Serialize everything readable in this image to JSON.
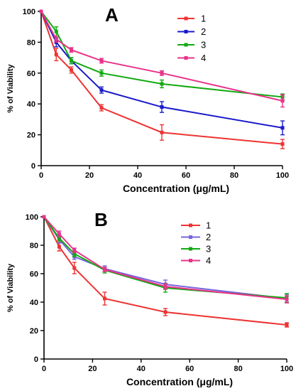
{
  "chart_data": [
    {
      "type": "line",
      "panel_label": "A",
      "xlabel": "Concentration (μg/mL)",
      "ylabel": "% of Viability",
      "xlim": [
        0,
        100
      ],
      "ylim": [
        0,
        100
      ],
      "x_ticks": [
        0,
        20,
        40,
        60,
        80,
        100
      ],
      "y_ticks": [
        0,
        20,
        40,
        60,
        80,
        100
      ],
      "legend_position": "top-right",
      "x": [
        0,
        6.25,
        12.5,
        25,
        50,
        100
      ],
      "series": [
        {
          "name": "1",
          "color": "#ee3333",
          "values": [
            100,
            72,
            62,
            37.5,
            21.5,
            14
          ],
          "errors": [
            0,
            4,
            2,
            2,
            5,
            3
          ]
        },
        {
          "name": "2",
          "color": "#1a1acc",
          "values": [
            100,
            80,
            68,
            49,
            38,
            24.5
          ],
          "errors": [
            0,
            3,
            2,
            2,
            3.5,
            4.5
          ]
        },
        {
          "name": "3",
          "color": "#11aa11",
          "values": [
            100,
            87,
            68,
            60,
            53,
            44.5
          ],
          "errors": [
            0,
            3,
            2,
            2,
            2.5,
            2
          ]
        },
        {
          "name": "4",
          "color": "#e8338a",
          "values": [
            100,
            82,
            75,
            68,
            60,
            42
          ],
          "errors": [
            0,
            2,
            1.5,
            1.5,
            1.5,
            4
          ]
        }
      ]
    },
    {
      "type": "line",
      "panel_label": "B",
      "xlabel": "Concentration (μg/mL)",
      "ylabel": "% of Viability",
      "xlim": [
        0,
        100
      ],
      "ylim": [
        0,
        100
      ],
      "x_ticks": [
        0,
        20,
        40,
        60,
        80,
        100
      ],
      "y_ticks": [
        0,
        20,
        40,
        60,
        80,
        100
      ],
      "legend_position": "top-right",
      "x": [
        0,
        6.25,
        12.5,
        25,
        50,
        100
      ],
      "series": [
        {
          "name": "1",
          "color": "#ee3333",
          "values": [
            100,
            79,
            64,
            42.5,
            33,
            24
          ],
          "errors": [
            0,
            3,
            4,
            4.5,
            2.5,
            1.5
          ]
        },
        {
          "name": "2",
          "color": "#7766dd",
          "values": [
            100,
            84,
            72,
            63.5,
            52.5,
            42.5
          ],
          "errors": [
            0,
            2.5,
            2,
            2,
            3,
            3
          ]
        },
        {
          "name": "3",
          "color": "#11aa11",
          "values": [
            100,
            85,
            74,
            62.5,
            50,
            43
          ],
          "errors": [
            0,
            2,
            2,
            2,
            3,
            3
          ]
        },
        {
          "name": "4",
          "color": "#e8338a",
          "values": [
            100,
            88,
            76.5,
            63,
            51,
            42
          ],
          "errors": [
            0,
            2,
            1.5,
            1.5,
            2,
            2.5
          ]
        }
      ]
    }
  ]
}
